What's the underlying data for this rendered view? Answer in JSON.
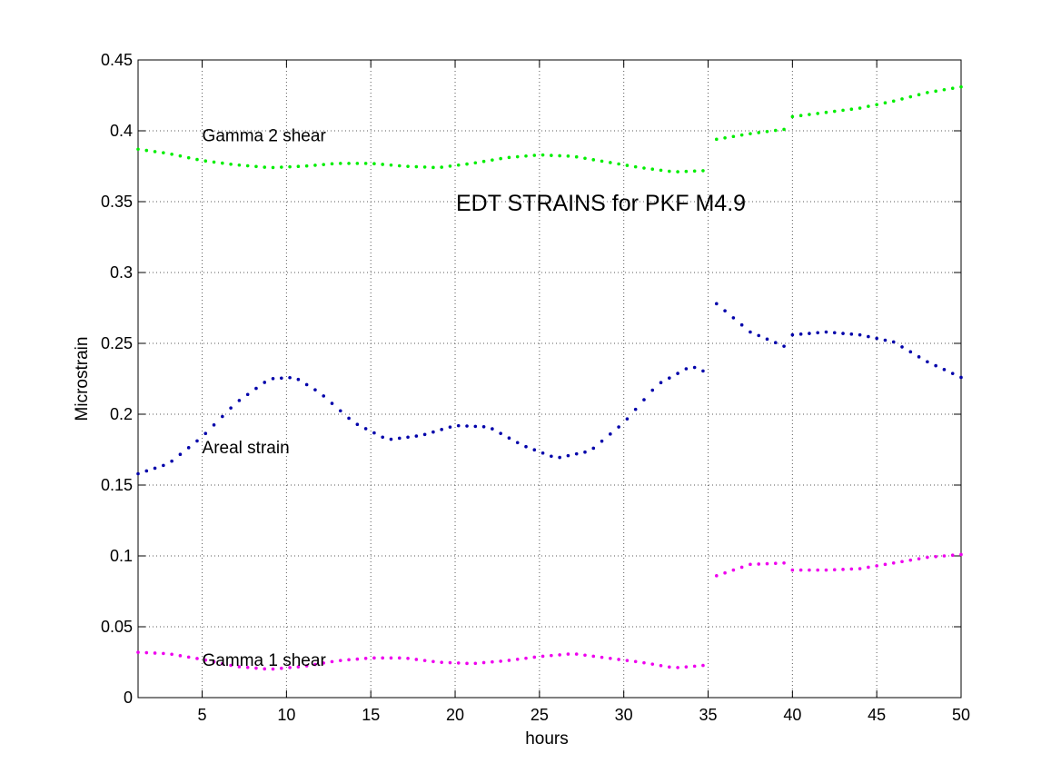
{
  "chart_data": {
    "type": "scatter",
    "title": "EDT STRAINS for PKF M4.9",
    "xlabel": "hours",
    "ylabel": "Microstrain",
    "xlim": [
      1.2,
      50
    ],
    "ylim": [
      0,
      0.45
    ],
    "xticks": [
      5,
      10,
      15,
      20,
      25,
      30,
      35,
      40,
      45,
      50
    ],
    "yticks": [
      0,
      0.05,
      0.1,
      0.15,
      0.2,
      0.25,
      0.3,
      0.35,
      0.4,
      0.45
    ],
    "xtick_labels": [
      "5",
      "10",
      "15",
      "20",
      "25",
      "30",
      "35",
      "40",
      "45",
      "50"
    ],
    "ytick_labels": [
      "0",
      "0.05",
      "0.1",
      "0.15",
      "0.2",
      "0.25",
      "0.3",
      "0.35",
      "0.4",
      "0.45"
    ],
    "grid": true,
    "annotations": [
      {
        "text": "Gamma 2  shear",
        "x": 5.0,
        "y": 0.397
      },
      {
        "text": "Areal  strain",
        "x": 5.0,
        "y": 0.177
      },
      {
        "text": "Gamma 1  shear",
        "x": 5.0,
        "y": 0.027
      }
    ],
    "series": [
      {
        "color": "#00ee00",
        "points": [
          [
            1.2,
            0.387
          ],
          [
            3,
            0.384
          ],
          [
            5,
            0.379
          ],
          [
            7,
            0.376
          ],
          [
            9,
            0.374
          ],
          [
            11,
            0.375
          ],
          [
            13,
            0.377
          ],
          [
            15,
            0.377
          ],
          [
            17,
            0.375
          ],
          [
            19,
            0.374
          ],
          [
            21,
            0.377
          ],
          [
            23,
            0.381
          ],
          [
            25,
            0.383
          ],
          [
            27,
            0.382
          ],
          [
            29,
            0.378
          ],
          [
            31,
            0.374
          ],
          [
            33,
            0.371
          ],
          [
            35,
            0.372
          ],
          [
            35.5,
            0.394
          ],
          [
            37.5,
            0.398
          ],
          [
            39.5,
            0.401
          ],
          [
            40,
            0.41
          ],
          [
            42,
            0.413
          ],
          [
            44,
            0.416
          ],
          [
            46,
            0.421
          ],
          [
            48,
            0.427
          ],
          [
            50,
            0.431
          ]
        ]
      },
      {
        "color": "#0000aa",
        "points": [
          [
            1.2,
            0.158
          ],
          [
            3,
            0.165
          ],
          [
            5,
            0.184
          ],
          [
            7,
            0.208
          ],
          [
            9,
            0.225
          ],
          [
            10.5,
            0.226
          ],
          [
            12,
            0.215
          ],
          [
            14,
            0.194
          ],
          [
            16,
            0.182
          ],
          [
            18,
            0.185
          ],
          [
            20,
            0.192
          ],
          [
            22,
            0.191
          ],
          [
            24,
            0.178
          ],
          [
            26,
            0.169
          ],
          [
            28,
            0.174
          ],
          [
            30,
            0.194
          ],
          [
            32,
            0.221
          ],
          [
            34,
            0.234
          ],
          [
            35,
            0.229
          ],
          [
            35.5,
            0.278
          ],
          [
            37.5,
            0.258
          ],
          [
            39.5,
            0.248
          ],
          [
            40,
            0.256
          ],
          [
            42,
            0.258
          ],
          [
            44,
            0.256
          ],
          [
            46,
            0.251
          ],
          [
            48,
            0.237
          ],
          [
            50,
            0.226
          ]
        ]
      },
      {
        "color": "#ee00ee",
        "points": [
          [
            1.2,
            0.032
          ],
          [
            3,
            0.031
          ],
          [
            5,
            0.027
          ],
          [
            7,
            0.022
          ],
          [
            9,
            0.02
          ],
          [
            11,
            0.022
          ],
          [
            13,
            0.026
          ],
          [
            15,
            0.028
          ],
          [
            17,
            0.028
          ],
          [
            19,
            0.025
          ],
          [
            21,
            0.024
          ],
          [
            23,
            0.026
          ],
          [
            25,
            0.029
          ],
          [
            27,
            0.031
          ],
          [
            29,
            0.028
          ],
          [
            31,
            0.025
          ],
          [
            33,
            0.021
          ],
          [
            35,
            0.023
          ],
          [
            35.5,
            0.086
          ],
          [
            37.5,
            0.094
          ],
          [
            39.5,
            0.095
          ],
          [
            40,
            0.09
          ],
          [
            42,
            0.09
          ],
          [
            44,
            0.091
          ],
          [
            46,
            0.095
          ],
          [
            48,
            0.099
          ],
          [
            50,
            0.101
          ]
        ]
      }
    ]
  }
}
